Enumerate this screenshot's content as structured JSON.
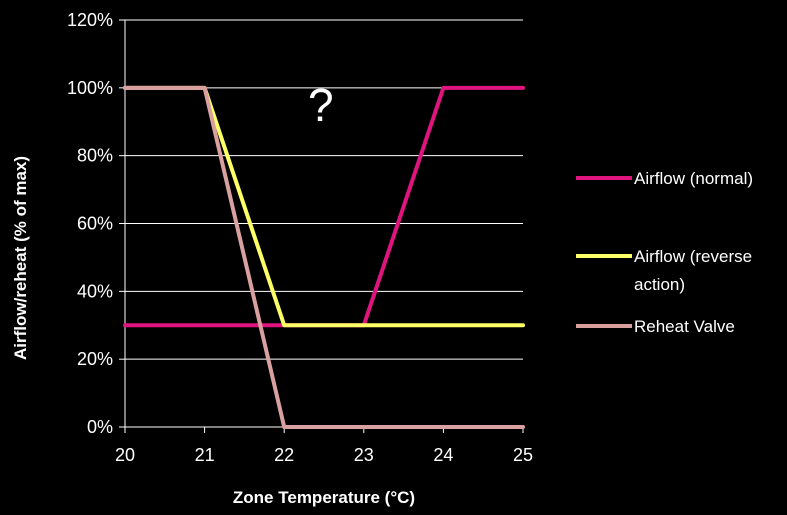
{
  "chart_data": {
    "type": "line",
    "xlabel": "Zone Temperature (°C)",
    "ylabel": "Airflow/reheat  (% of max)",
    "xlim": [
      20,
      25
    ],
    "ylim": [
      0,
      120
    ],
    "x_ticks": [
      "20",
      "21",
      "22",
      "23",
      "24",
      "25"
    ],
    "y_ticks": [
      "0%",
      "20%",
      "40%",
      "60%",
      "80%",
      "100%",
      "120%"
    ],
    "grid": "horizontal",
    "legend_position": "right",
    "annotation": "?",
    "series": [
      {
        "name": "Airflow (normal)",
        "color": "#e0147f",
        "legend_lines": [
          "Airflow (normal)"
        ],
        "x": [
          20,
          23,
          24,
          25
        ],
        "y": [
          30,
          30,
          100,
          100
        ]
      },
      {
        "name": "Airflow (reverse action)",
        "color": "#ffff66",
        "legend_lines": [
          "Airflow (reverse",
          "action)"
        ],
        "x": [
          20,
          21,
          22,
          25
        ],
        "y": [
          100,
          100,
          30,
          30
        ]
      },
      {
        "name": "Reheat Valve",
        "color": "#d9a0a0",
        "legend_lines": [
          "Reheat Valve"
        ],
        "x": [
          20,
          21,
          22,
          25
        ],
        "y": [
          100,
          100,
          0,
          0
        ]
      }
    ]
  }
}
